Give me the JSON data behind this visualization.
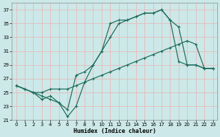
{
  "xlabel": "Humidex (Indice chaleur)",
  "background_color": "#cce8e8",
  "grid_color": "#e8b8b8",
  "line_color": "#1a6b5a",
  "xlim": [
    -0.5,
    23.5
  ],
  "ylim": [
    21,
    38
  ],
  "yticks": [
    21,
    23,
    25,
    27,
    29,
    31,
    33,
    35,
    37
  ],
  "xticks": [
    0,
    1,
    2,
    3,
    4,
    5,
    6,
    7,
    8,
    9,
    10,
    11,
    12,
    13,
    14,
    15,
    16,
    17,
    18,
    19,
    20,
    21,
    22,
    23
  ],
  "line1_x": [
    0,
    1,
    2,
    3,
    4,
    5,
    6,
    7,
    8,
    9,
    10,
    11,
    12,
    13,
    14,
    15,
    16,
    17,
    18,
    19,
    20,
    21,
    22,
    23
  ],
  "line1_y": [
    26.0,
    25.5,
    25.0,
    24.5,
    24.0,
    23.5,
    21.5,
    23.0,
    26.5,
    29.0,
    31.0,
    35.0,
    35.5,
    35.5,
    36.0,
    36.5,
    36.5,
    37.0,
    35.5,
    29.5,
    29.0,
    29.0,
    28.5,
    28.5
  ],
  "line2_x": [
    0,
    1,
    2,
    3,
    4,
    5,
    6,
    7,
    8,
    9,
    10,
    11,
    12,
    13,
    14,
    15,
    16,
    17,
    18,
    19,
    20,
    21,
    22,
    23
  ],
  "line2_y": [
    26.0,
    25.5,
    25.0,
    24.0,
    24.5,
    23.5,
    22.5,
    27.5,
    28.0,
    29.0,
    31.0,
    33.0,
    35.0,
    35.5,
    36.0,
    36.5,
    36.5,
    37.0,
    35.5,
    34.5,
    29.0,
    29.0,
    28.5,
    28.5
  ],
  "line3_x": [
    0,
    1,
    2,
    3,
    4,
    5,
    6,
    7,
    8,
    9,
    10,
    11,
    12,
    13,
    14,
    15,
    16,
    17,
    18,
    19,
    20,
    21,
    22,
    23
  ],
  "line3_y": [
    26.0,
    25.5,
    25.0,
    25.0,
    25.5,
    25.5,
    25.5,
    26.0,
    26.5,
    27.0,
    27.5,
    28.0,
    28.5,
    29.0,
    29.5,
    30.0,
    30.5,
    31.0,
    31.5,
    32.0,
    32.5,
    32.0,
    28.5,
    28.5
  ]
}
